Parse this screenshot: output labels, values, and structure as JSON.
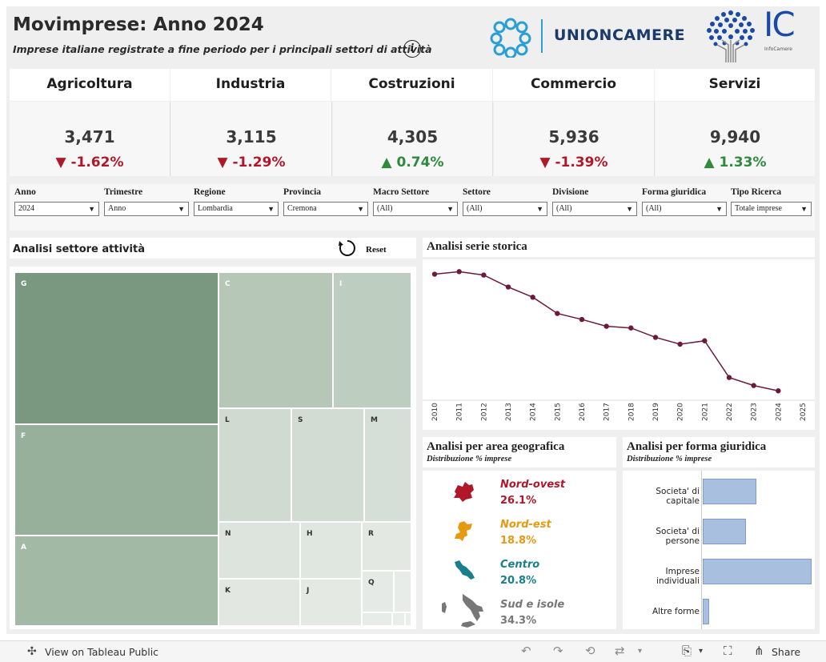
{
  "header": {
    "title": "Movimprese: Anno 2024",
    "subtitle": "Imprese italiane registrate a fine periodo per i principali settori di attività",
    "info_glyph": "i",
    "unioncamere_label": "UNIONCAMERE",
    "infocamere_label": "IC",
    "infocamere_sub": "InfoCamere"
  },
  "kpis": [
    {
      "label": "Agricoltura",
      "value": "3,471",
      "change": "-1.62%",
      "direction": "down",
      "arrow": "▼"
    },
    {
      "label": "Industria",
      "value": "3,115",
      "change": "-1.29%",
      "direction": "down",
      "arrow": "▼"
    },
    {
      "label": "Costruzioni",
      "value": "4,305",
      "change": "0.74%",
      "direction": "up",
      "arrow": "▲"
    },
    {
      "label": "Commercio",
      "value": "5,936",
      "change": "-1.39%",
      "direction": "down",
      "arrow": "▼"
    },
    {
      "label": "Servizi",
      "value": "9,940",
      "change": "1.33%",
      "direction": "up",
      "arrow": "▲"
    }
  ],
  "filters": [
    {
      "label": "Anno",
      "value": "2024"
    },
    {
      "label": "Trimestre",
      "value": "Anno"
    },
    {
      "label": "Regione",
      "value": "Lombardia"
    },
    {
      "label": "Provincia",
      "value": "Cremona"
    },
    {
      "label": "Macro  Settore",
      "value": "(All)"
    },
    {
      "label": "Settore",
      "value": "(All)"
    },
    {
      "label": "Divisione",
      "value": "(All)"
    },
    {
      "label": "Forma  giuridica",
      "value": "(All)"
    },
    {
      "label": "Tipo  Ricerca",
      "value": "Totale imprese"
    }
  ],
  "treemap": {
    "title": "Analisi settore attività",
    "reset_label": "Reset",
    "cells": [
      "G",
      "F",
      "A",
      "C",
      "I",
      "L",
      "S",
      "M",
      "N",
      "H",
      "R",
      "K",
      "J",
      "Q"
    ]
  },
  "serie_storica": {
    "title": "Analisi  serie  storica"
  },
  "geo": {
    "title": "Analisi  per  area  geografica",
    "subtitle": "Distribuzione  %  imprese",
    "areas": [
      {
        "name": "Nord-ovest",
        "value": "26.1%",
        "color": "#b0182a",
        "icon": "nord-ovest-map-icon"
      },
      {
        "name": "Nord-est",
        "value": "18.8%",
        "color": "#e59a12",
        "icon": "nord-est-map-icon"
      },
      {
        "name": "Centro",
        "value": "20.8%",
        "color": "#1a7f8c",
        "icon": "centro-map-icon"
      },
      {
        "name": "Sud e isole",
        "value": "34.3%",
        "color": "#777777",
        "icon": "sud-isole-map-icon"
      }
    ]
  },
  "forma": {
    "title": "Analisi  per  forma  giuridica",
    "subtitle": "Distribuzione  %  imprese",
    "items": [
      {
        "label": "Societa' di capitale",
        "share": 0.24
      },
      {
        "label": "Societa' di persone",
        "share": 0.195
      },
      {
        "label": "Imprese individuali",
        "share": 0.49
      },
      {
        "label": "Altre forme",
        "share": 0.03
      }
    ]
  },
  "chart_data": {
    "type": "line",
    "title": "Analisi  serie  storica",
    "x": [
      2010,
      2011,
      2012,
      2013,
      2014,
      2015,
      2016,
      2017,
      2018,
      2019,
      2020,
      2021,
      2022,
      2023,
      2024
    ],
    "x_ticks": [
      "2010",
      "2011",
      "2012",
      "2013",
      "2014",
      "2015",
      "2016",
      "2017",
      "2018",
      "2019",
      "2020",
      "2021",
      "2022",
      "2023",
      "2024",
      "2025"
    ],
    "series": [
      {
        "values": [
          30600,
          30750,
          30550,
          29850,
          29250,
          28300,
          27950,
          27550,
          27450,
          26900,
          26500,
          26700,
          24550,
          24080,
          23770
        ]
      }
    ],
    "xlim": [
      2010,
      2025
    ],
    "ylim": [
      23500,
      31000
    ],
    "y_axis_visible": false,
    "color": "#6b1a3a",
    "grid": false
  },
  "toolbar": {
    "view_label": "View on Tableau Public",
    "share_label": "Share"
  },
  "colors": {
    "treemap_dark": "#7a9880",
    "treemap_mid": "#96b09b",
    "treemap_light": "#b6c7b8",
    "treemap_pale": "#d2dcd3",
    "treemap_palest": "#e3e8e3",
    "negative": "#b0182a",
    "positive": "#2f8a3b"
  }
}
